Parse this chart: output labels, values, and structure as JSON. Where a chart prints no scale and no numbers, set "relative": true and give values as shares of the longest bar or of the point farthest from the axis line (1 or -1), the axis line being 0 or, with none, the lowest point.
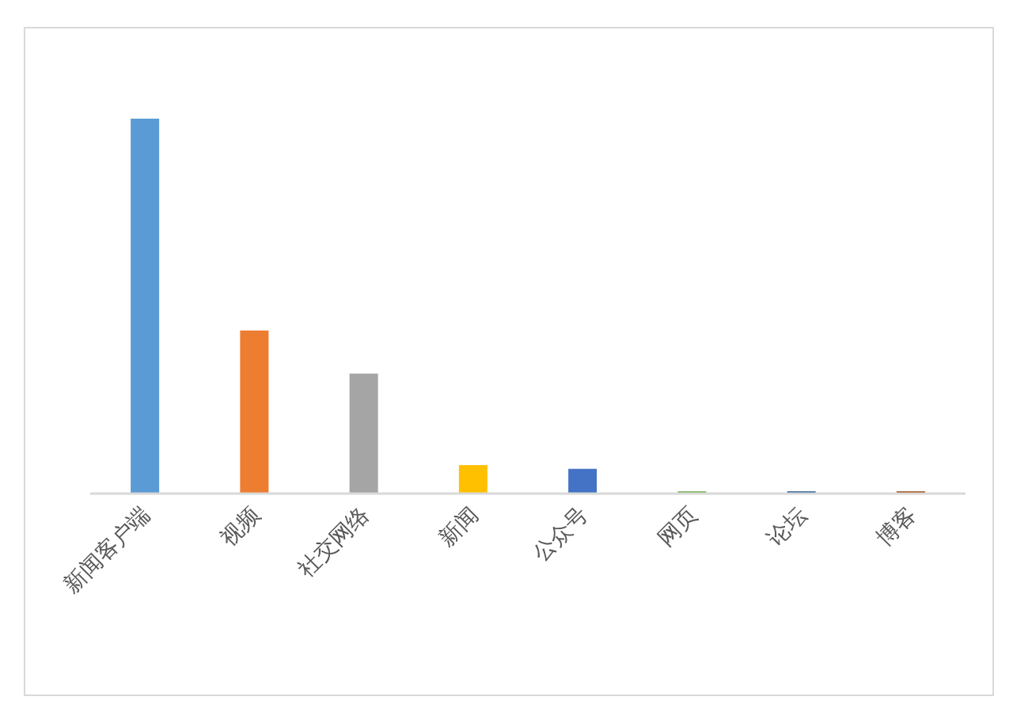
{
  "chart_data": {
    "type": "bar",
    "relative": true,
    "categories": [
      "新闻客户端",
      "视频",
      "社交网络",
      "新闻",
      "公众号",
      "网页",
      "论坛",
      "博客"
    ],
    "values": [
      1,
      0.435,
      0.32,
      0.076,
      0.066,
      0.006,
      0.006,
      0.006
    ],
    "colors": [
      "#5b9bd5",
      "#ed7d31",
      "#a5a5a5",
      "#ffc000",
      "#4472c4",
      "#70ad47",
      "#255e91",
      "#9e480e"
    ]
  }
}
